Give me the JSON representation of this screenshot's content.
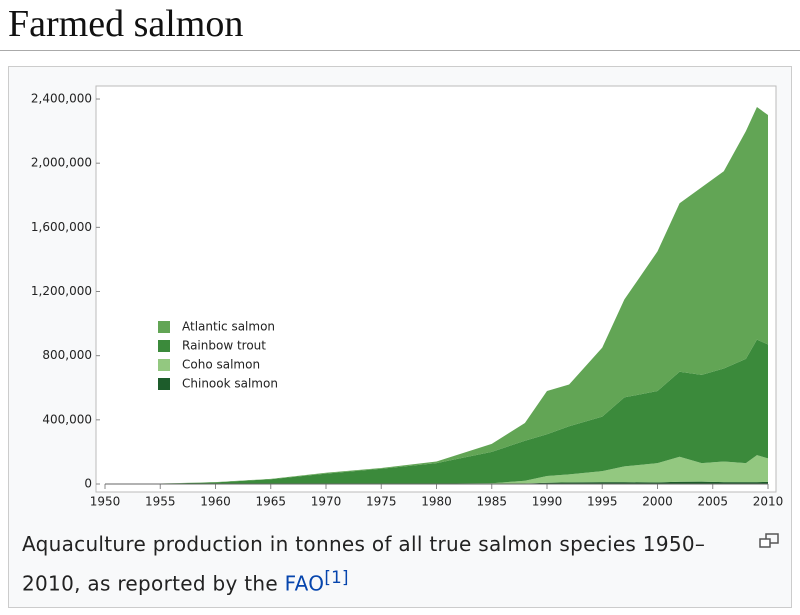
{
  "header": {
    "title": "Farmed salmon"
  },
  "chart_data": {
    "type": "area",
    "stacked": true,
    "x": [
      1950,
      1955,
      1960,
      1965,
      1970,
      1975,
      1980,
      1985,
      1988,
      1990,
      1992,
      1995,
      1997,
      2000,
      2002,
      2004,
      2006,
      2008,
      2009,
      2010
    ],
    "series": [
      {
        "name": "Atlantic salmon",
        "color": "#62a555",
        "values": [
          0,
          1000,
          2000,
          2000,
          5000,
          5000,
          10000,
          50000,
          110000,
          270000,
          260000,
          430000,
          610000,
          870000,
          1050000,
          1170000,
          1230000,
          1420000,
          1450000,
          1430000
        ]
      },
      {
        "name": "Rainbow trout",
        "color": "#3b8a3b",
        "values": [
          0,
          2000,
          10000,
          30000,
          65000,
          94000,
          128000,
          195000,
          250000,
          260000,
          300000,
          340000,
          430000,
          450000,
          530000,
          550000,
          580000,
          650000,
          720000,
          710000
        ]
      },
      {
        "name": "Coho salmon",
        "color": "#93c880",
        "values": [
          0,
          0,
          0,
          0,
          0,
          1000,
          2000,
          4000,
          17000,
          42000,
          50000,
          68000,
          98000,
          120000,
          156000,
          115000,
          128000,
          118000,
          168000,
          147000
        ]
      },
      {
        "name": "Chinook salmon",
        "color": "#1d5c2b",
        "values": [
          0,
          0,
          0,
          0,
          0,
          0,
          0,
          1000,
          3000,
          8000,
          10000,
          12000,
          12000,
          10000,
          14000,
          15000,
          12000,
          12000,
          12000,
          13000
        ]
      }
    ],
    "xlim": [
      1950,
      2010
    ],
    "xticks": [
      1950,
      1955,
      1960,
      1965,
      1970,
      1975,
      1980,
      1985,
      1990,
      1995,
      2000,
      2005,
      2010
    ],
    "ylim": [
      0,
      2450000
    ],
    "yticks": [
      0,
      {
        "value": 400000,
        "label": "400,000"
      },
      {
        "value": 800000,
        "label": "800,000"
      },
      {
        "value": 1200000,
        "label": "1,200,000"
      },
      {
        "value": 1600000,
        "label": "1,600,000"
      },
      {
        "value": 2000000,
        "label": "2,000,000"
      },
      {
        "value": 2400000,
        "label": "2,400,000"
      }
    ]
  },
  "caption": {
    "text": "Aquaculture production in tonnes of all true salmon species 1950–2010, as reported by the",
    "link": "FAO",
    "ref": "[1]"
  }
}
